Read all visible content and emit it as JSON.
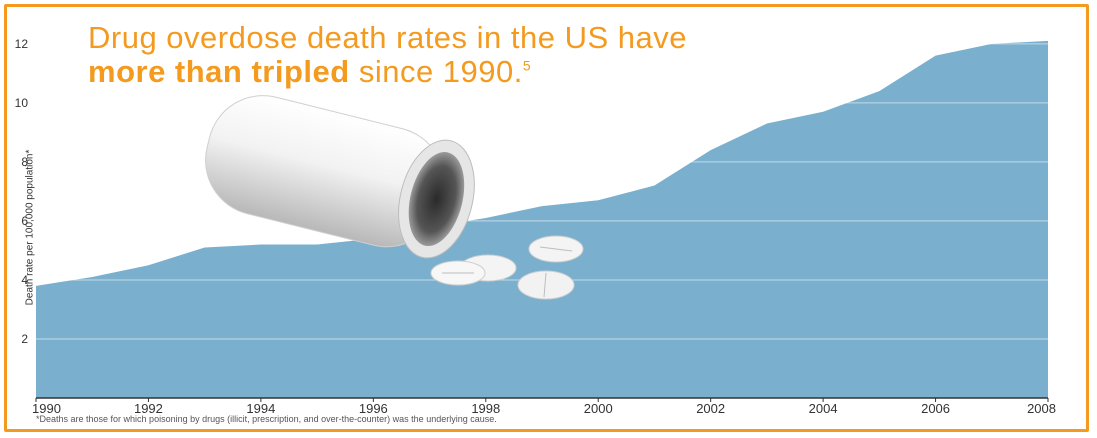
{
  "title": {
    "line1": "Drug overdose death rates in the US have",
    "line2_bold": "more than tripled",
    "line2_rest": " since 1990.",
    "line2_sup": "5"
  },
  "footnote": "*Deaths are those for which poisoning by drugs (illicit, prescription, and over-the-counter) was the underlying cause.",
  "colors": {
    "border": "#f39a1f",
    "title": "#f39a1f",
    "area": "#7ab0cd",
    "grid": "#ffffff"
  },
  "chart_data": {
    "type": "area",
    "ylabel": "Death rate per 100,000 population*",
    "xlabel": "",
    "x_ticks": [
      1990,
      1992,
      1994,
      1996,
      1998,
      2000,
      2002,
      2004,
      2006,
      2008
    ],
    "y_ticks": [
      2,
      4,
      6,
      8,
      10,
      12
    ],
    "xlim": [
      1990,
      2008
    ],
    "ylim": [
      0,
      12.3
    ],
    "grid": "horizontal",
    "x": [
      1990,
      1991,
      1992,
      1993,
      1994,
      1995,
      1996,
      1997,
      1998,
      1999,
      2000,
      2001,
      2002,
      2003,
      2004,
      2005,
      2006,
      2007,
      2008
    ],
    "values": [
      3.8,
      4.1,
      4.5,
      5.1,
      5.2,
      5.2,
      5.4,
      5.8,
      6.1,
      6.5,
      6.7,
      7.2,
      8.4,
      9.3,
      9.7,
      10.4,
      11.6,
      12.0,
      12.1
    ]
  }
}
